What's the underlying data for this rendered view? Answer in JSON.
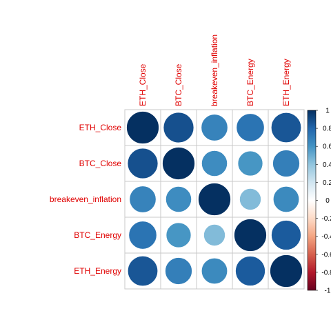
{
  "chart_data": {
    "type": "heatmap",
    "variables": [
      "ETH_Close",
      "BTC_Close",
      "breakeven_inflation",
      "BTC_Energy",
      "ETH_Energy"
    ],
    "matrix": [
      [
        1.0,
        0.88,
        0.67,
        0.74,
        0.86
      ],
      [
        0.88,
        1.0,
        0.63,
        0.59,
        0.69
      ],
      [
        0.67,
        0.63,
        1.0,
        0.44,
        0.64
      ],
      [
        0.74,
        0.59,
        0.44,
        1.0,
        0.84
      ],
      [
        0.86,
        0.69,
        0.64,
        0.84,
        1.0
      ]
    ],
    "method": "circle",
    "colorbar": {
      "ticks": [
        "1",
        "0.8",
        "0.6",
        "0.4",
        "0.2",
        "0",
        "-0.2",
        "-0.4",
        "-0.6",
        "-0.8",
        "-1"
      ],
      "range": [
        -1,
        1
      ],
      "colors": [
        "#67001F",
        "#B2182B",
        "#D6604D",
        "#F4A582",
        "#FDDBC7",
        "#FFFFFF",
        "#D1E5F0",
        "#92C5DE",
        "#4393C3",
        "#2166AC",
        "#053061"
      ]
    },
    "label_color": "#e00000",
    "grid": true
  }
}
